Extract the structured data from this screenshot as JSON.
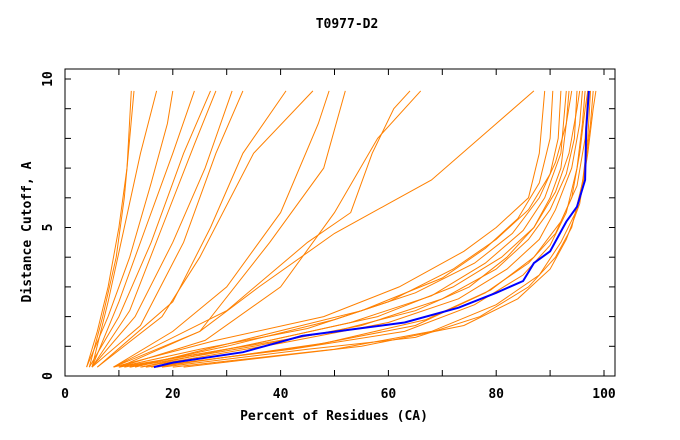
{
  "chart_data": {
    "type": "line",
    "title": "T0977-D2",
    "xlabel": "Percent of Residues (CA)",
    "ylabel": "Distance Cutoff, A",
    "xlim": [
      0,
      100
    ],
    "ylim": [
      0,
      10
    ],
    "x_ticks": [
      "0",
      "20",
      "40",
      "60",
      "80",
      "100"
    ],
    "y_ticks": [
      "0",
      "5",
      "10"
    ],
    "grid": false,
    "legend": "none",
    "colors": {
      "models": "#ff8000",
      "highlight": "#0000ff"
    },
    "series": [
      {
        "points": [
          [
            4,
            0.3
          ],
          [
            6,
            1.5
          ],
          [
            8,
            3
          ],
          [
            10,
            5
          ],
          [
            11.5,
            7
          ],
          [
            12.3,
            9.6
          ]
        ]
      },
      {
        "points": [
          [
            4.5,
            0.3
          ],
          [
            7,
            2
          ],
          [
            9.5,
            4
          ],
          [
            11,
            6
          ],
          [
            12,
            8
          ],
          [
            12.8,
            9.6
          ]
        ]
      },
      {
        "points": [
          [
            5,
            0.3
          ],
          [
            8,
            2.5
          ],
          [
            11,
            5
          ],
          [
            14,
            7.5
          ],
          [
            17,
            9.6
          ]
        ]
      },
      {
        "points": [
          [
            4,
            0.3
          ],
          [
            8,
            2
          ],
          [
            12,
            4
          ],
          [
            16,
            6.5
          ],
          [
            19,
            8.5
          ],
          [
            20,
            9.6
          ]
        ]
      },
      {
        "points": [
          [
            5,
            0.3
          ],
          [
            10,
            2.5
          ],
          [
            15,
            5
          ],
          [
            20,
            7.5
          ],
          [
            24,
            9.6
          ]
        ]
      },
      {
        "points": [
          [
            4.5,
            0.3
          ],
          [
            10,
            2
          ],
          [
            16,
            4.5
          ],
          [
            22,
            7.5
          ],
          [
            27,
            9.6
          ]
        ]
      },
      {
        "points": [
          [
            5,
            0.3
          ],
          [
            12,
            2.2
          ],
          [
            18,
            5
          ],
          [
            24,
            7.8
          ],
          [
            28,
            9.6
          ]
        ]
      },
      {
        "points": [
          [
            5,
            0.3
          ],
          [
            13,
            2
          ],
          [
            20,
            4.5
          ],
          [
            26,
            7
          ],
          [
            31,
            9.6
          ]
        ]
      },
      {
        "points": [
          [
            5,
            0.3
          ],
          [
            14,
            1.7
          ],
          [
            22,
            4.5
          ],
          [
            28,
            7.5
          ],
          [
            33,
            9.6
          ]
        ]
      },
      {
        "points": [
          [
            6,
            0.3
          ],
          [
            20,
            2.5
          ],
          [
            27,
            5
          ],
          [
            33,
            7.5
          ],
          [
            41,
            9.6
          ]
        ]
      },
      {
        "points": [
          [
            6,
            0.3
          ],
          [
            18,
            2
          ],
          [
            25,
            4
          ],
          [
            35,
            7.5
          ],
          [
            46,
            9.6
          ]
        ]
      },
      {
        "points": [
          [
            9,
            0.3
          ],
          [
            20,
            1.5
          ],
          [
            30,
            3
          ],
          [
            40,
            5.5
          ],
          [
            47,
            8.5
          ],
          [
            49,
            9.6
          ]
        ]
      },
      {
        "points": [
          [
            10,
            0.3
          ],
          [
            25,
            1.5
          ],
          [
            38,
            4.5
          ],
          [
            48,
            7
          ],
          [
            52,
            9.6
          ]
        ]
      },
      {
        "points": [
          [
            9,
            0.3
          ],
          [
            30,
            2.2
          ],
          [
            45,
            4.5
          ],
          [
            53,
            5.5
          ],
          [
            57,
            7.5
          ],
          [
            61,
            9
          ],
          [
            64,
            9.6
          ]
        ]
      },
      {
        "points": [
          [
            9,
            0.3
          ],
          [
            25,
            1.5
          ],
          [
            36,
            3
          ],
          [
            50,
            4.8
          ],
          [
            60,
            5.8
          ],
          [
            68,
            6.6
          ],
          [
            87,
            9.6
          ]
        ]
      },
      {
        "points": [
          [
            10,
            0.3
          ],
          [
            26,
            1.2
          ],
          [
            40,
            3
          ],
          [
            50,
            5.5
          ],
          [
            58,
            8
          ],
          [
            66,
            9.6
          ]
        ]
      },
      {
        "points": [
          [
            10,
            0.3
          ],
          [
            30,
            0.9
          ],
          [
            50,
            1.5
          ],
          [
            65,
            2.2
          ],
          [
            75,
            3
          ],
          [
            82,
            4
          ],
          [
            87,
            5
          ],
          [
            90,
            6
          ],
          [
            92,
            7
          ],
          [
            93,
            8.5
          ],
          [
            94,
            9.6
          ]
        ]
      },
      {
        "points": [
          [
            10,
            0.3
          ],
          [
            25,
            0.9
          ],
          [
            45,
            1.6
          ],
          [
            60,
            2.5
          ],
          [
            72,
            3.6
          ],
          [
            80,
            4.6
          ],
          [
            86,
            5.6
          ],
          [
            90,
            6.8
          ],
          [
            91.5,
            8
          ],
          [
            92,
            9.6
          ]
        ]
      },
      {
        "points": [
          [
            12,
            0.3
          ],
          [
            35,
            1
          ],
          [
            55,
            1.7
          ],
          [
            70,
            2.6
          ],
          [
            80,
            3.6
          ],
          [
            86,
            4.6
          ],
          [
            90,
            5.6
          ],
          [
            93,
            6.8
          ],
          [
            94.5,
            8
          ],
          [
            95,
            9.6
          ]
        ]
      },
      {
        "points": [
          [
            14,
            0.3
          ],
          [
            40,
            1.1
          ],
          [
            60,
            1.8
          ],
          [
            73,
            2.6
          ],
          [
            82,
            3.6
          ],
          [
            88,
            4.6
          ],
          [
            91,
            5.6
          ],
          [
            94,
            7
          ],
          [
            95.5,
            8.5
          ],
          [
            96,
            9.6
          ]
        ]
      },
      {
        "points": [
          [
            15,
            0.3
          ],
          [
            42,
            0.9
          ],
          [
            63,
            1.5
          ],
          [
            76,
            2.4
          ],
          [
            85,
            3.4
          ],
          [
            90,
            4.4
          ],
          [
            93,
            5.5
          ],
          [
            95,
            7
          ],
          [
            96,
            8.5
          ],
          [
            96.5,
            9.6
          ]
        ]
      },
      {
        "points": [
          [
            18,
            0.3
          ],
          [
            45,
            0.9
          ],
          [
            65,
            1.3
          ],
          [
            77,
            2
          ],
          [
            86,
            3
          ],
          [
            91,
            4
          ],
          [
            94,
            5
          ],
          [
            96,
            6.5
          ],
          [
            97,
            8
          ],
          [
            97.5,
            9.6
          ]
        ]
      },
      {
        "points": [
          [
            20,
            0.3
          ],
          [
            50,
            0.9
          ],
          [
            68,
            1.5
          ],
          [
            80,
            2.4
          ],
          [
            88,
            3.4
          ],
          [
            92,
            4.5
          ],
          [
            95,
            5.6
          ],
          [
            96.5,
            7
          ],
          [
            97.5,
            8.5
          ],
          [
            98,
            9.6
          ]
        ]
      },
      {
        "points": [
          [
            12,
            0.3
          ],
          [
            30,
            1
          ],
          [
            50,
            1.9
          ],
          [
            65,
            2.8
          ],
          [
            76,
            3.8
          ],
          [
            83,
            4.8
          ],
          [
            88,
            6
          ],
          [
            91,
            7.2
          ],
          [
            93,
            8.5
          ],
          [
            93.5,
            9.6
          ]
        ]
      },
      {
        "points": [
          [
            9,
            0.3
          ],
          [
            28,
            1.2
          ],
          [
            48,
            2
          ],
          [
            62,
            3
          ],
          [
            74,
            4.2
          ],
          [
            80,
            5
          ],
          [
            86,
            6
          ],
          [
            88,
            7.5
          ],
          [
            89,
            9.6
          ]
        ]
      },
      {
        "points": [
          [
            14,
            0.3
          ],
          [
            38,
            1.2
          ],
          [
            58,
            2
          ],
          [
            72,
            3
          ],
          [
            81,
            4
          ],
          [
            87,
            5
          ],
          [
            91,
            6.2
          ],
          [
            93.5,
            7.5
          ],
          [
            95,
            9
          ],
          [
            95.5,
            9.6
          ]
        ]
      },
      {
        "points": [
          [
            16,
            0.3
          ],
          [
            45,
            1
          ],
          [
            65,
            1.7
          ],
          [
            78,
            2.8
          ],
          [
            86,
            3.8
          ],
          [
            91,
            4.8
          ],
          [
            94,
            6
          ],
          [
            95.5,
            7.5
          ],
          [
            96.5,
            9
          ],
          [
            97,
            9.6
          ]
        ]
      },
      {
        "points": [
          [
            22,
            0.3
          ],
          [
            55,
            1
          ],
          [
            74,
            1.7
          ],
          [
            84,
            2.6
          ],
          [
            90,
            3.6
          ],
          [
            93,
            4.6
          ],
          [
            95.5,
            5.8
          ],
          [
            97,
            7.5
          ],
          [
            98,
            9
          ],
          [
            98.5,
            9.6
          ]
        ]
      },
      {
        "points": [
          [
            11,
            0.3
          ],
          [
            33,
            1
          ],
          [
            53,
            1.8
          ],
          [
            68,
            2.7
          ],
          [
            78,
            3.8
          ],
          [
            85,
            4.9
          ],
          [
            89,
            6
          ],
          [
            92,
            7.5
          ],
          [
            93,
            9.6
          ]
        ]
      },
      {
        "points": [
          [
            17,
            0.3
          ],
          [
            48,
            1.1
          ],
          [
            67,
            1.9
          ],
          [
            79,
            2.9
          ],
          [
            87,
            4
          ],
          [
            92,
            5.2
          ],
          [
            95,
            6.4
          ],
          [
            96.5,
            8
          ],
          [
            97,
            9.6
          ]
        ]
      },
      {
        "points": [
          [
            13,
            0.3
          ],
          [
            35,
            1.3
          ],
          [
            55,
            2.2
          ],
          [
            70,
            3.3
          ],
          [
            78,
            4.3
          ],
          [
            84,
            5.3
          ],
          [
            88,
            6.5
          ],
          [
            90,
            8
          ],
          [
            90.5,
            9.6
          ]
        ]
      }
    ],
    "highlight_series": {
      "points": [
        [
          16.5,
          0.3
        ],
        [
          20,
          0.45
        ],
        [
          33,
          0.8
        ],
        [
          44,
          1.35
        ],
        [
          63,
          1.8
        ],
        [
          73,
          2.3
        ],
        [
          80,
          2.8
        ],
        [
          85,
          3.2
        ],
        [
          87,
          3.8
        ],
        [
          90,
          4.2
        ],
        [
          93,
          5.2
        ],
        [
          95,
          5.7
        ],
        [
          96.5,
          6.6
        ],
        [
          96.7,
          8.3
        ],
        [
          97.2,
          9.6
        ]
      ]
    }
  }
}
